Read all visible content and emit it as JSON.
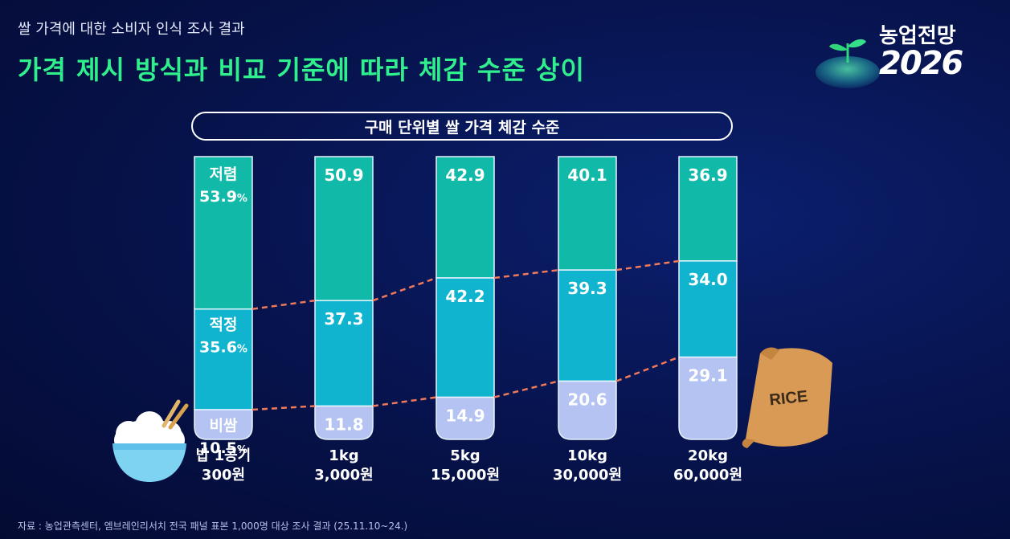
{
  "header": {
    "subtitle": "쌀 가격에 대한 소비자 인식 조사 결과",
    "headline": "가격 제시 방식과 비교 기준에 따라 체감 수준 상이"
  },
  "logo": {
    "text": "농업전망",
    "year": "2026"
  },
  "chart_data": {
    "type": "bar",
    "stacked": true,
    "title": "구매 단위별 쌀 가격 체감 수준",
    "unit": "%",
    "categories": [
      {
        "line1": "밥 1공기",
        "line2": "300원"
      },
      {
        "line1": "1kg",
        "line2": "3,000원"
      },
      {
        "line1": "5kg",
        "line2": "15,000원"
      },
      {
        "line1": "10kg",
        "line2": "30,000원"
      },
      {
        "line1": "20kg",
        "line2": "60,000원"
      }
    ],
    "series": [
      {
        "name": "저렴",
        "color": "#11b9a8",
        "values": [
          53.9,
          50.9,
          42.9,
          40.1,
          36.9
        ]
      },
      {
        "name": "적정",
        "color": "#10b4cf",
        "values": [
          35.6,
          37.3,
          42.2,
          39.3,
          34.0
        ]
      },
      {
        "name": "비쌈",
        "color": "#b4c3f1",
        "values": [
          10.5,
          11.8,
          14.9,
          20.6,
          29.1
        ]
      }
    ],
    "labels": [
      [
        "53.9",
        "50.9",
        "42.9",
        "40.1",
        "36.9"
      ],
      [
        "35.6",
        "37.3",
        "42.2",
        "39.3",
        "34.0"
      ],
      [
        "10.5",
        "11.8",
        "14.9",
        "20.6",
        "29.1"
      ]
    ],
    "percent_sign": "%",
    "connector_color": "#f07a5a"
  },
  "source": "자료 : 농업관측센터, 엠브레인리서치 전국 패널 표본 1,000명 대상 조사 결과 (25.11.10~24.)"
}
